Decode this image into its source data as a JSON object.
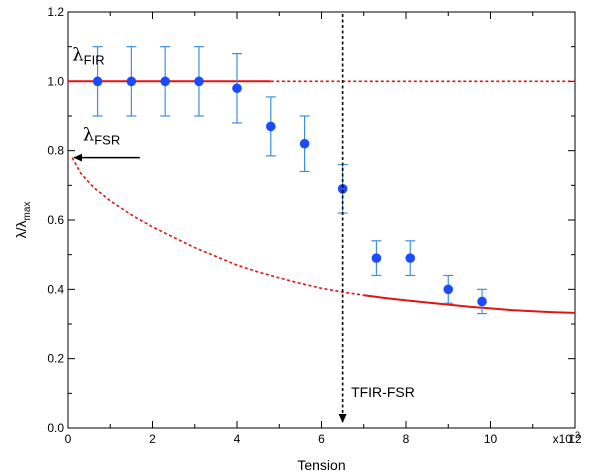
{
  "chart_data": {
    "type": "scatter",
    "xlabel": "Tension",
    "ylabel": "λ/λmax",
    "ylabel_main": "λ/λ",
    "ylabel_sub": "max",
    "xlim": [
      0,
      12
    ],
    "ylim": [
      0,
      1.2
    ],
    "x_scale_label": "x10",
    "x_scale_exp": "-3",
    "x_ticks": [
      0,
      2,
      4,
      6,
      8,
      10,
      12
    ],
    "x_tick_labels": [
      "0",
      "2",
      "4",
      "6",
      "8",
      "10",
      "12"
    ],
    "y_ticks": [
      0.0,
      0.2,
      0.4,
      0.6,
      0.8,
      1.0,
      1.2
    ],
    "y_tick_labels": [
      "0.0",
      "0.2",
      "0.4",
      "0.6",
      "0.8",
      "1.0",
      "1.2"
    ],
    "grid": false,
    "colors": {
      "points": "#1a4bff",
      "errorbars": "#3f8fe0",
      "model": "#e01414",
      "axes": "#000000"
    },
    "series": [
      {
        "kind": "scatter-errorbar",
        "points": [
          {
            "x": 0.7,
            "y": 1.0,
            "err": 0.1
          },
          {
            "x": 1.5,
            "y": 1.0,
            "err": 0.1
          },
          {
            "x": 2.3,
            "y": 1.0,
            "err": 0.1
          },
          {
            "x": 3.1,
            "y": 1.0,
            "err": 0.1
          },
          {
            "x": 4.0,
            "y": 0.98,
            "err": 0.1
          },
          {
            "x": 4.8,
            "y": 0.87,
            "err": 0.085
          },
          {
            "x": 5.6,
            "y": 0.82,
            "err": 0.08
          },
          {
            "x": 6.5,
            "y": 0.69,
            "err": 0.07
          },
          {
            "x": 7.3,
            "y": 0.49,
            "err": 0.05
          },
          {
            "x": 8.1,
            "y": 0.49,
            "err": 0.05
          },
          {
            "x": 9.0,
            "y": 0.4,
            "err": 0.04
          },
          {
            "x": 9.8,
            "y": 0.365,
            "err": 0.035
          }
        ]
      },
      {
        "kind": "line",
        "points": [
          {
            "x": 0,
            "y": 1.0
          },
          {
            "x": 4.8,
            "y": 1.0
          }
        ]
      },
      {
        "kind": "dashed-line",
        "points": [
          {
            "x": 4.8,
            "y": 1.0
          },
          {
            "x": 12,
            "y": 1.0
          }
        ]
      },
      {
        "kind": "dashed-line",
        "points": [
          {
            "x": 0.1,
            "y": 0.78
          },
          {
            "x": 0.3,
            "y": 0.735
          },
          {
            "x": 0.6,
            "y": 0.695
          },
          {
            "x": 1.0,
            "y": 0.655
          },
          {
            "x": 1.5,
            "y": 0.615
          },
          {
            "x": 2.0,
            "y": 0.58
          },
          {
            "x": 2.5,
            "y": 0.55
          },
          {
            "x": 3.0,
            "y": 0.52
          },
          {
            "x": 3.5,
            "y": 0.495
          },
          {
            "x": 4.0,
            "y": 0.47
          },
          {
            "x": 4.5,
            "y": 0.45
          },
          {
            "x": 5.0,
            "y": 0.433
          },
          {
            "x": 5.5,
            "y": 0.417
          },
          {
            "x": 6.0,
            "y": 0.403
          },
          {
            "x": 6.5,
            "y": 0.392
          },
          {
            "x": 7.0,
            "y": 0.383
          }
        ]
      },
      {
        "kind": "line",
        "points": [
          {
            "x": 7.0,
            "y": 0.383
          },
          {
            "x": 7.5,
            "y": 0.375
          },
          {
            "x": 8.0,
            "y": 0.368
          },
          {
            "x": 8.5,
            "y": 0.362
          },
          {
            "x": 9.0,
            "y": 0.356
          },
          {
            "x": 9.5,
            "y": 0.35
          },
          {
            "x": 10.0,
            "y": 0.345
          },
          {
            "x": 10.5,
            "y": 0.34
          },
          {
            "x": 11.0,
            "y": 0.337
          },
          {
            "x": 11.5,
            "y": 0.334
          },
          {
            "x": 12.0,
            "y": 0.332
          }
        ]
      }
    ],
    "annotations": {
      "lambda_fir": {
        "symbol": "λ",
        "sub": "FIR",
        "x": 0.1,
        "y": 1.06
      },
      "lambda_fsr": {
        "symbol": "λ",
        "sub": "FSR",
        "x": 0.35,
        "y": 0.83
      },
      "fsr_arrow": {
        "from_x": 1.7,
        "to_x": 0.1,
        "y": 0.78
      },
      "transition": {
        "label": "TFIR-FSR",
        "x": 6.5,
        "label_x": 6.7,
        "label_y": 0.09
      }
    }
  }
}
